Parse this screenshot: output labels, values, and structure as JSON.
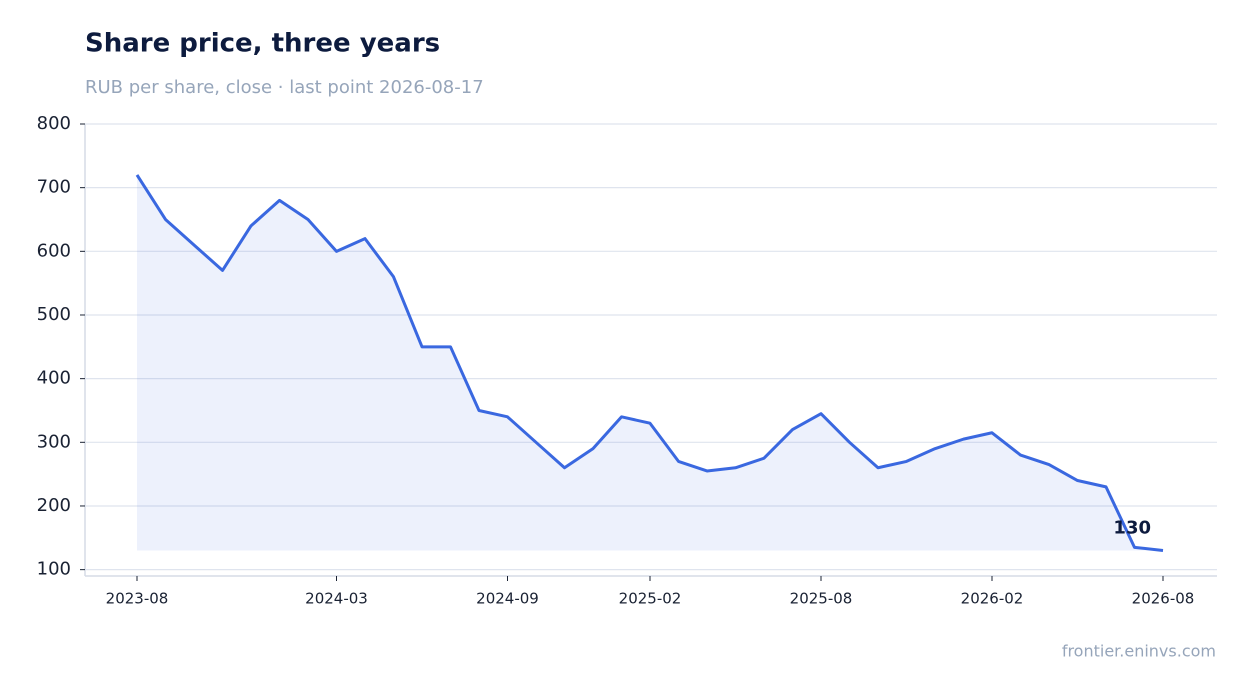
{
  "chart_data": {
    "type": "line",
    "title": "Share price, three years",
    "subtitle": "RUB per share, close · last point 2026-08-17",
    "source": "frontier.eninvs.com",
    "x": [
      "2023-08",
      "2023-09",
      "2023-10",
      "2023-11",
      "2023-12",
      "2024-01",
      "2024-02",
      "2024-03",
      "2024-04",
      "2024-05",
      "2024-06",
      "2024-07",
      "2024-08",
      "2024-09",
      "2024-10",
      "2024-11",
      "2024-12",
      "2025-01",
      "2025-02",
      "2025-03",
      "2025-04",
      "2025-05",
      "2025-06",
      "2025-07",
      "2025-08",
      "2025-09",
      "2025-10",
      "2025-11",
      "2025-12",
      "2026-01",
      "2026-02",
      "2026-03",
      "2026-04",
      "2026-05",
      "2026-06",
      "2026-07",
      "2026-08"
    ],
    "values": [
      720,
      650,
      610,
      570,
      640,
      680,
      650,
      600,
      620,
      560,
      450,
      450,
      350,
      340,
      300,
      260,
      290,
      340,
      330,
      270,
      255,
      260,
      275,
      320,
      345,
      300,
      260,
      270,
      290,
      305,
      315,
      280,
      265,
      240,
      230,
      135,
      130
    ],
    "color": "#3a68e0",
    "area": true,
    "ylim": [
      90,
      800
    ],
    "yticks": [
      100,
      200,
      300,
      400,
      500,
      600,
      700,
      800
    ],
    "xticks": [
      "2023-08",
      "2024-03",
      "2024-09",
      "2025-02",
      "2025-08",
      "2026-02",
      "2026-08"
    ],
    "grid": true
  }
}
